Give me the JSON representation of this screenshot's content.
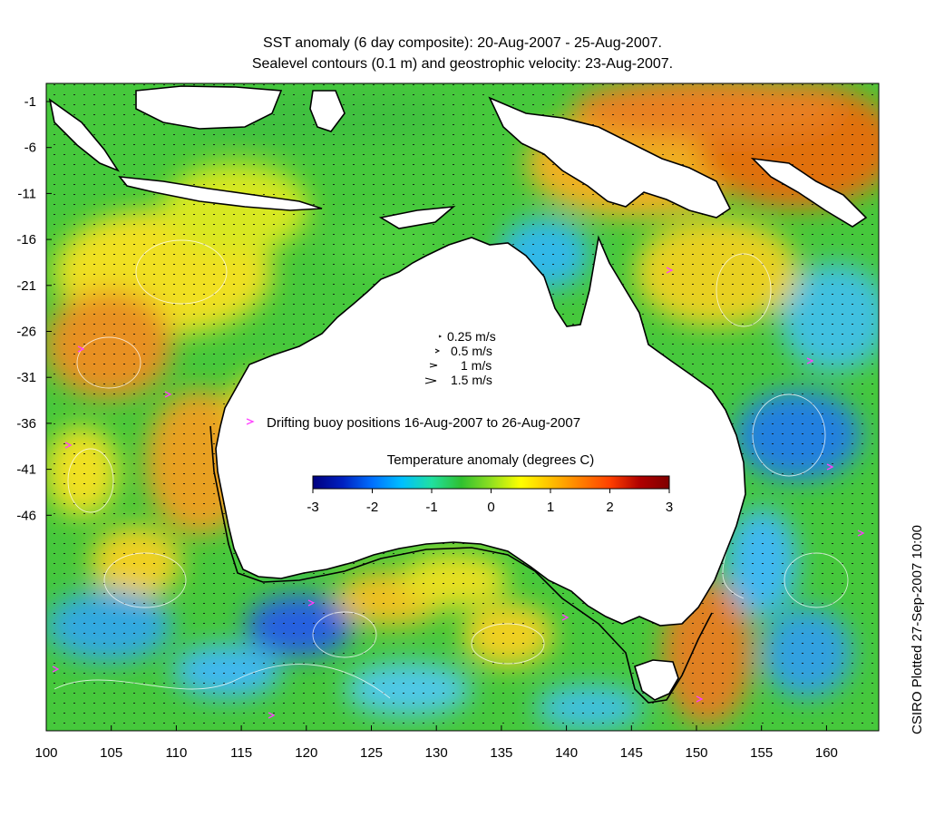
{
  "title_line1": "SST anomaly (6 day composite): 20-Aug-2007 - 25-Aug-2007.",
  "title_line2": "Sealevel contours (0.1 m) and geostrophic velocity: 23-Aug-2007.",
  "side_credit": "CSIRO Plotted 27-Sep-2007 10:00",
  "y_ticks": [
    "-1",
    "-6",
    "-11",
    "-16",
    "-21",
    "-26",
    "-31",
    "-36",
    "-41",
    "-46"
  ],
  "x_ticks": [
    "100",
    "105",
    "110",
    "115",
    "120",
    "125",
    "130",
    "135",
    "140",
    "145",
    "150",
    "155",
    "160"
  ],
  "velocity_legend": [
    "0.25 m/s",
    "0.5 m/s",
    "1 m/s",
    "1.5 m/s"
  ],
  "buoy_legend": "Drifting buoy positions 16-Aug-2007 to 26-Aug-2007",
  "colorbar": {
    "title": "Temperature anomaly (degrees C)",
    "ticks": [
      "-3",
      "-2",
      "-1",
      "0",
      "1",
      "2",
      "3"
    ],
    "colors": [
      "#00007f",
      "#0020c0",
      "#0070ff",
      "#00c0ff",
      "#20e0a0",
      "#30c030",
      "#90e020",
      "#ffff00",
      "#ffc000",
      "#ff8000",
      "#ff4000",
      "#b00000",
      "#7f0000"
    ]
  },
  "colors": {
    "ocean_base": "#38c83a",
    "warm": "#ffd000",
    "hot": "#e07000",
    "cool": "#30b8e8",
    "cold": "#2050e0",
    "land": "#ffffff",
    "buoy": "#ff40ff"
  }
}
